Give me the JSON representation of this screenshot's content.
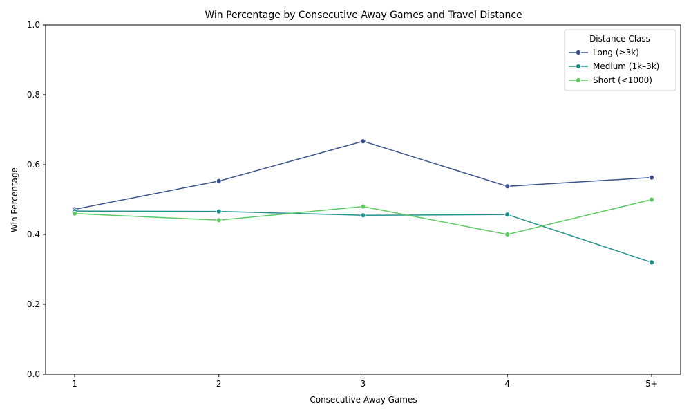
{
  "chart_data": {
    "type": "line",
    "title": "Win Percentage by Consecutive Away Games and Travel Distance",
    "xlabel": "Consecutive Away Games",
    "ylabel": "Win Percentage",
    "categories": [
      "1",
      "2",
      "3",
      "4",
      "5+"
    ],
    "ylim": [
      0,
      1.0
    ],
    "yticks": [
      "0.0",
      "0.2",
      "0.4",
      "0.6",
      "0.8",
      "1.0"
    ],
    "grid": false,
    "legend": {
      "title": "Distance Class",
      "placement": "top-right"
    },
    "series": [
      {
        "name": "Long (≥3k)",
        "color": "#3b528b",
        "values": [
          0.472,
          0.553,
          0.667,
          0.538,
          0.563
        ]
      },
      {
        "name": "Medium (1k–3k)",
        "color": "#21918c",
        "values": [
          0.467,
          0.466,
          0.455,
          0.457,
          0.32
        ]
      },
      {
        "name": "Short (<1000)",
        "color": "#5ec962",
        "values": [
          0.46,
          0.441,
          0.48,
          0.4,
          0.5
        ]
      }
    ]
  }
}
